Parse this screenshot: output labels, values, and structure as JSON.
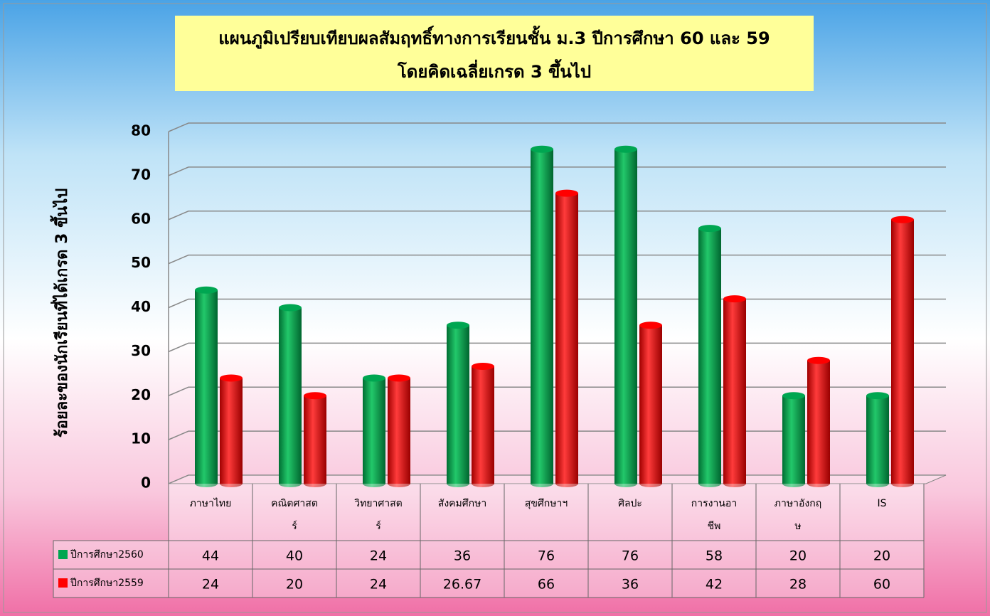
{
  "chart_data": {
    "type": "bar",
    "title": "แผนภูมิเปรียบเทียบผลสัมฤทธิ์ทางการเรียนชั้น ม.3 ปีการศึกษา  60 และ 59",
    "subtitle": "โดยคิดเฉลี่ยเกรด 3 ขึ้นไป",
    "y_label": "ร้อยละของนักเรียนที่ได้เกรด 3  ขึ้นไป",
    "categories": [
      "ภาษาไทย",
      "คณิตศาสตร์",
      "วิทยาศาสตร์",
      "สังคมศึกษา",
      "สุขศึกษาฯ",
      "ศิลปะ",
      "การงานอาชีพ",
      "ภาษาอังกฤษ",
      "IS"
    ],
    "series": [
      {
        "name": "ปีการศึกษา2560",
        "color": "#00a651",
        "values": [
          44,
          40,
          24,
          36,
          76,
          76,
          58,
          20,
          20
        ]
      },
      {
        "name": "ปีการศึกษา2559",
        "color": "#ff0000",
        "values": [
          24,
          20,
          24,
          26.67,
          66,
          36,
          42,
          28,
          60
        ]
      }
    ],
    "ylim": [
      0,
      80
    ],
    "yticks": [
      0,
      10,
      20,
      30,
      40,
      50,
      60,
      70,
      80
    ],
    "grid": true
  }
}
